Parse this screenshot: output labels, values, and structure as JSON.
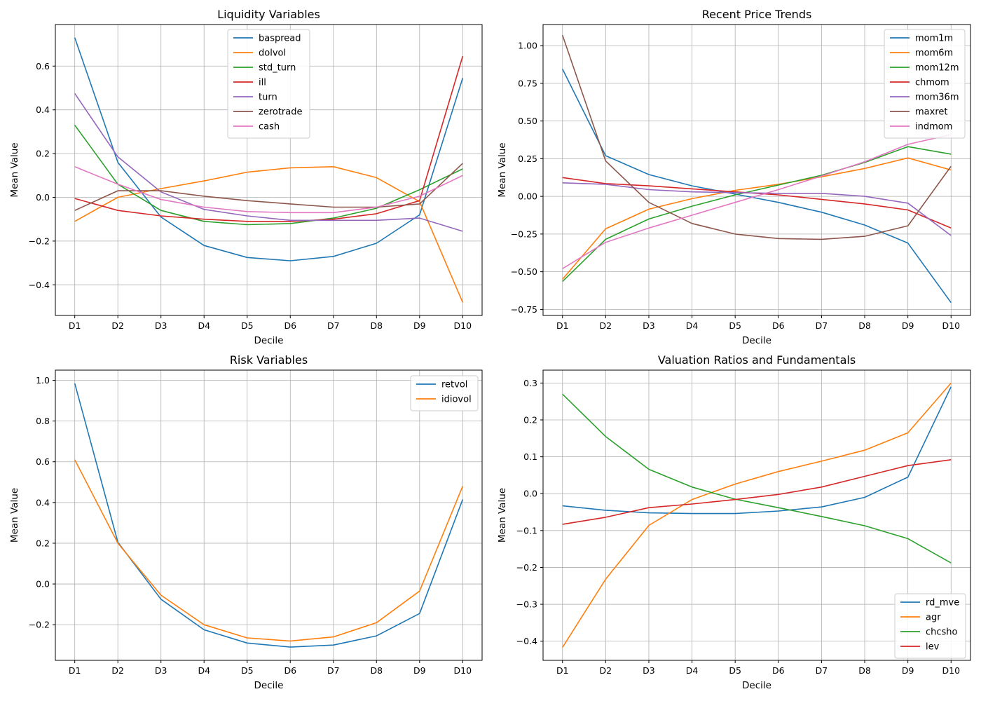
{
  "figure": {
    "colors": [
      "#1f77b4",
      "#ff7f0e",
      "#2ca02c",
      "#d62728",
      "#9467bd",
      "#8c564b",
      "#e377c2"
    ],
    "grid_color": "#b0b0b0"
  },
  "chart_data": [
    {
      "type": "line",
      "title": "Liquidity Variables",
      "xlabel": "Decile",
      "ylabel": "Mean Value",
      "categories": [
        "D1",
        "D2",
        "D3",
        "D4",
        "D5",
        "D6",
        "D7",
        "D8",
        "D9",
        "D10"
      ],
      "ylim": [
        -0.54,
        0.79
      ],
      "yticks": [
        -0.4,
        -0.2,
        0.0,
        0.2,
        0.4,
        0.6
      ],
      "ytick_labels": [
        "−0.4",
        "−0.2",
        "0.0",
        "0.2",
        "0.4",
        "0.6"
      ],
      "grid": true,
      "legend_loc": "upper-center",
      "series": [
        {
          "name": "baspread",
          "values": [
            0.73,
            0.16,
            -0.09,
            -0.22,
            -0.275,
            -0.29,
            -0.27,
            -0.21,
            -0.08,
            0.545
          ]
        },
        {
          "name": "dolvol",
          "values": [
            -0.11,
            0.0,
            0.04,
            0.075,
            0.115,
            0.135,
            0.14,
            0.09,
            -0.02,
            -0.48
          ]
        },
        {
          "name": "std_turn",
          "values": [
            0.33,
            0.06,
            -0.06,
            -0.11,
            -0.125,
            -0.12,
            -0.095,
            -0.05,
            0.035,
            0.13
          ]
        },
        {
          "name": "ill",
          "values": [
            -0.005,
            -0.06,
            -0.085,
            -0.1,
            -0.11,
            -0.11,
            -0.1,
            -0.075,
            -0.015,
            0.645
          ]
        },
        {
          "name": "turn",
          "values": [
            0.475,
            0.185,
            0.025,
            -0.055,
            -0.085,
            -0.105,
            -0.105,
            -0.105,
            -0.095,
            -0.155
          ]
        },
        {
          "name": "zerotrade",
          "values": [
            -0.06,
            0.03,
            0.03,
            0.005,
            -0.015,
            -0.03,
            -0.045,
            -0.045,
            -0.03,
            0.155
          ]
        },
        {
          "name": "cash",
          "values": [
            0.14,
            0.06,
            -0.01,
            -0.045,
            -0.065,
            -0.07,
            -0.07,
            -0.045,
            0.005,
            0.1
          ]
        }
      ]
    },
    {
      "type": "line",
      "title": "Recent Price Trends",
      "xlabel": "Decile",
      "ylabel": "Mean Value",
      "categories": [
        "D1",
        "D2",
        "D3",
        "D4",
        "D5",
        "D6",
        "D7",
        "D8",
        "D9",
        "D10"
      ],
      "ylim": [
        -0.79,
        1.14
      ],
      "yticks": [
        -0.75,
        -0.5,
        -0.25,
        0.0,
        0.25,
        0.5,
        0.75,
        1.0
      ],
      "ytick_labels": [
        "−0.75",
        "−0.50",
        "−0.25",
        "0.00",
        "0.25",
        "0.50",
        "0.75",
        "1.00"
      ],
      "grid": true,
      "legend_loc": "upper-right",
      "series": [
        {
          "name": "mom1m",
          "values": [
            0.845,
            0.27,
            0.145,
            0.07,
            0.015,
            -0.04,
            -0.105,
            -0.19,
            -0.31,
            -0.705
          ]
        },
        {
          "name": "mom6m",
          "values": [
            -0.55,
            -0.215,
            -0.085,
            -0.015,
            0.04,
            0.08,
            0.13,
            0.185,
            0.255,
            0.175
          ]
        },
        {
          "name": "mom12m",
          "values": [
            -0.565,
            -0.285,
            -0.15,
            -0.065,
            0.01,
            0.075,
            0.14,
            0.225,
            0.33,
            0.28
          ]
        },
        {
          "name": "chmom",
          "values": [
            0.125,
            0.085,
            0.07,
            0.05,
            0.03,
            0.01,
            -0.02,
            -0.05,
            -0.09,
            -0.21
          ]
        },
        {
          "name": "mom36m",
          "values": [
            0.09,
            0.08,
            0.045,
            0.03,
            0.025,
            0.02,
            0.02,
            0.0,
            -0.045,
            -0.26
          ]
        },
        {
          "name": "maxret",
          "values": [
            1.07,
            0.235,
            -0.04,
            -0.18,
            -0.25,
            -0.28,
            -0.285,
            -0.265,
            -0.195,
            0.2
          ]
        },
        {
          "name": "indmom",
          "values": [
            -0.48,
            -0.305,
            -0.21,
            -0.125,
            -0.04,
            0.045,
            0.135,
            0.23,
            0.345,
            0.41
          ]
        }
      ]
    },
    {
      "type": "line",
      "title": "Risk Variables",
      "xlabel": "Decile",
      "ylabel": "Mean Value",
      "categories": [
        "D1",
        "D2",
        "D3",
        "D4",
        "D5",
        "D6",
        "D7",
        "D8",
        "D9",
        "D10"
      ],
      "ylim": [
        -0.375,
        1.05
      ],
      "yticks": [
        -0.2,
        0.0,
        0.2,
        0.4,
        0.6,
        0.8,
        1.0
      ],
      "ytick_labels": [
        "−0.2",
        "0.0",
        "0.2",
        "0.4",
        "0.6",
        "0.8",
        "1.0"
      ],
      "grid": true,
      "legend_loc": "upper-right",
      "series": [
        {
          "name": "retvol",
          "values": [
            0.985,
            0.205,
            -0.075,
            -0.225,
            -0.29,
            -0.31,
            -0.3,
            -0.255,
            -0.145,
            0.415
          ]
        },
        {
          "name": "idiovol",
          "values": [
            0.61,
            0.2,
            -0.055,
            -0.2,
            -0.265,
            -0.28,
            -0.26,
            -0.19,
            -0.035,
            0.48
          ]
        }
      ]
    },
    {
      "type": "line",
      "title": "Valuation Ratios and Fundamentals",
      "xlabel": "Decile",
      "ylabel": "Mean Value",
      "categories": [
        "D1",
        "D2",
        "D3",
        "D4",
        "D5",
        "D6",
        "D7",
        "D8",
        "D9",
        "D10"
      ],
      "ylim": [
        -0.452,
        0.335
      ],
      "yticks": [
        -0.4,
        -0.3,
        -0.2,
        -0.1,
        0.0,
        0.1,
        0.2,
        0.3
      ],
      "ytick_labels": [
        "−0.4",
        "−0.3",
        "−0.2",
        "−0.1",
        "0.0",
        "0.1",
        "0.2",
        "0.3"
      ],
      "grid": true,
      "legend_loc": "lower-right",
      "series": [
        {
          "name": "rd_mve",
          "values": [
            -0.033,
            -0.045,
            -0.052,
            -0.054,
            -0.054,
            -0.047,
            -0.036,
            -0.01,
            0.045,
            0.29
          ]
        },
        {
          "name": "agr",
          "values": [
            -0.417,
            -0.232,
            -0.086,
            -0.016,
            0.026,
            0.06,
            0.088,
            0.118,
            0.165,
            0.3
          ]
        },
        {
          "name": "chcsho",
          "values": [
            0.27,
            0.155,
            0.066,
            0.018,
            -0.015,
            -0.038,
            -0.062,
            -0.087,
            -0.122,
            -0.188
          ]
        },
        {
          "name": "lev",
          "values": [
            -0.083,
            -0.064,
            -0.038,
            -0.028,
            -0.016,
            -0.002,
            0.018,
            0.047,
            0.076,
            0.092
          ]
        }
      ]
    }
  ]
}
